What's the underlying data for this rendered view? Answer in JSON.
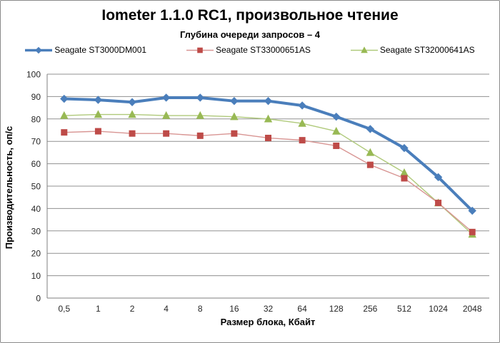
{
  "frame": {
    "background": "#ffffff",
    "border_color": "#8a8a8a"
  },
  "chart_data": {
    "type": "line",
    "title": "Iometer 1.1.0 RC1, произвольное чтение",
    "subtitle": "Глубина очереди запросов – 4",
    "xlabel": "Размер блока, Кбайт",
    "ylabel": "Производительность, оп/с",
    "categories": [
      "0,5",
      "1",
      "2",
      "4",
      "8",
      "16",
      "32",
      "64",
      "128",
      "256",
      "512",
      "1024",
      "2048"
    ],
    "ylim": [
      0,
      100
    ],
    "ytick_step": 10,
    "grid": true,
    "legend_position": "top-center",
    "axis_color": "#7f7f7f",
    "grid_color": "#919191",
    "tick_label_color": "#262626",
    "series": [
      {
        "name": "Seagate ST3000DM001",
        "marker": "diamond",
        "color": "#4A7EBB",
        "line_color": "#4A7EBB",
        "line_width": 4,
        "values": [
          89,
          88.5,
          87.5,
          89.5,
          89.5,
          88,
          88,
          86,
          81,
          75.5,
          67,
          54,
          39
        ]
      },
      {
        "name": "Seagate ST33000651AS",
        "marker": "square",
        "color": "#BE4B48",
        "line_color": "#D89593",
        "line_width": 1.4,
        "values": [
          74,
          74.5,
          73.5,
          73.5,
          72.5,
          73.5,
          71.5,
          70.5,
          68,
          59.5,
          53.5,
          42.5,
          29.5
        ]
      },
      {
        "name": "Seagate ST32000641AS",
        "marker": "triangle",
        "color": "#98B954",
        "line_color": "#AFC97A",
        "line_width": 1.4,
        "values": [
          81.5,
          82,
          82,
          81.5,
          81.5,
          81,
          80,
          78,
          74.5,
          65,
          56,
          42.5,
          28.5
        ]
      }
    ]
  }
}
